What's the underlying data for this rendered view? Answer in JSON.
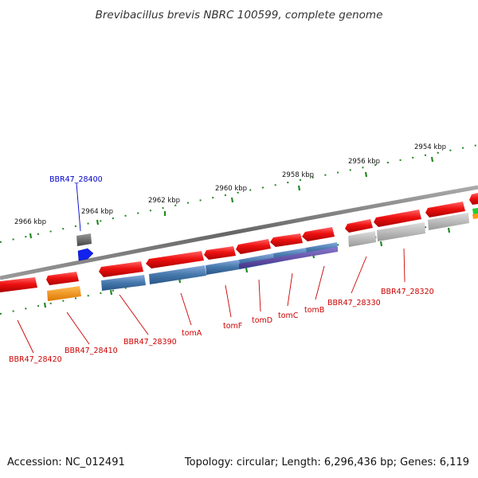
{
  "title": "Brevibacillus brevis NBRC 100599, complete genome",
  "footer": {
    "accession": "Accession: NC_012491",
    "topology": "Topology: circular; Length: 6,296,436 bp; Genes: 6,119"
  },
  "ruler_labels": [
    "2966 kbp",
    "2964 kbp",
    "2962 kbp",
    "2960 kbp",
    "2958 kbp",
    "2956 kbp",
    "2954 kbp"
  ],
  "gene_labels": [
    "BBR47_28400",
    "BBR47_28420",
    "BBR47_28410",
    "BBR47_28390",
    "tomA",
    "tomF",
    "tomD",
    "tomC",
    "tomB",
    "BBR47_28330",
    "BBR47_28320"
  ],
  "colors": {
    "gene": "#ee1111",
    "backbone": "#777777",
    "ruler_tick": "#228822",
    "label_red": "#cc0000",
    "label_blue": "#0000cc",
    "cluster_blue": "#4477aa",
    "cluster_purple": "#554499",
    "orange": "#ff9911",
    "gray": "#aaaaaa"
  }
}
